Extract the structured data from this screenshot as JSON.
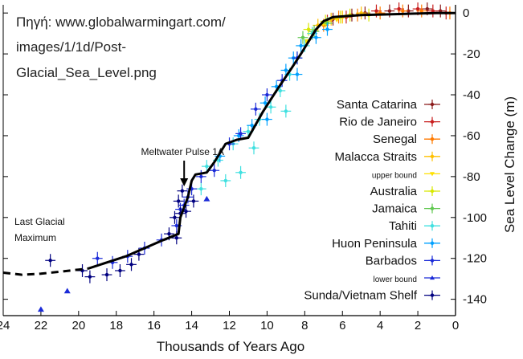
{
  "source_caption": [
    "Πηγή: www.globalwarmingart.com/",
    "images/1/1d/Post-",
    "Glacial_Sea_Level.png"
  ],
  "chart_data": {
    "type": "scatter",
    "xlabel": "Thousands of Years Ago",
    "ylabel": "Sea Level Change (m)",
    "xlim": [
      24,
      0
    ],
    "ylim": [
      -148,
      4
    ],
    "x_ticks": [
      24,
      22,
      20,
      18,
      16,
      14,
      12,
      10,
      8,
      6,
      4,
      2,
      0
    ],
    "y_ticks": [
      0,
      -20,
      -40,
      -60,
      -80,
      -100,
      -120,
      -140
    ],
    "grid": false,
    "legend_position": "right",
    "annotations": [
      {
        "text": "Meltwater Pulse 1A",
        "x": 14.4,
        "y": -72
      },
      {
        "text": "Last Glacial",
        "x": 23.5,
        "y": -101
      },
      {
        "text": "Maximum",
        "x": 23.5,
        "y": -108
      }
    ],
    "series": [
      {
        "name": "Santa Catarina",
        "color": "#8b1a1a",
        "marker": "plus",
        "points": [
          [
            6.5,
            -3
          ],
          [
            5.5,
            -1
          ],
          [
            4.8,
            0
          ],
          [
            3.5,
            1
          ],
          [
            2.5,
            1
          ],
          [
            1.5,
            2
          ],
          [
            0.8,
            1
          ]
        ]
      },
      {
        "name": "Rio de Janeiro",
        "color": "#c81e1e",
        "marker": "plus",
        "points": [
          [
            6.8,
            -4
          ],
          [
            5.8,
            -2
          ],
          [
            4.2,
            1
          ],
          [
            3.0,
            2
          ],
          [
            2.0,
            2
          ],
          [
            1.2,
            1
          ],
          [
            0.5,
            0
          ]
        ]
      },
      {
        "name": "Senegal",
        "color": "#ff7a00",
        "marker": "plus",
        "points": [
          [
            7.0,
            -6
          ],
          [
            6.2,
            -2
          ],
          [
            5.2,
            -1
          ],
          [
            4.0,
            0
          ],
          [
            2.8,
            1
          ],
          [
            1.8,
            1
          ],
          [
            0.3,
            0
          ]
        ]
      },
      {
        "name": "Malacca Straits",
        "color": "#ffc000",
        "marker": "plus",
        "points": [
          [
            7.6,
            -10
          ],
          [
            7.3,
            -6
          ],
          [
            6.6,
            -3
          ],
          [
            6.0,
            -2
          ],
          [
            5.0,
            0
          ]
        ]
      },
      {
        "name": "upper bound",
        "color": "#ffe000",
        "marker": "down",
        "points": [
          [
            7.9,
            -14
          ],
          [
            7.0,
            -5
          ],
          [
            6.3,
            -3
          ]
        ]
      },
      {
        "name": "Australia",
        "color": "#d8e800",
        "marker": "plus",
        "points": [
          [
            7.8,
            -8
          ],
          [
            6.9,
            -4
          ],
          [
            6.1,
            -2
          ],
          [
            5.6,
            -1
          ],
          [
            4.6,
            -1
          ]
        ]
      },
      {
        "name": "Jamaica",
        "color": "#60c850",
        "marker": "plus",
        "points": [
          [
            8.1,
            -12
          ],
          [
            7.5,
            -9
          ],
          [
            6.8,
            -5
          ]
        ]
      },
      {
        "name": "Tahiti",
        "color": "#40e0e0",
        "marker": "plus",
        "points": [
          [
            13.2,
            -75
          ],
          [
            12.6,
            -72
          ],
          [
            11.8,
            -64
          ],
          [
            11.0,
            -58
          ],
          [
            10.4,
            -52
          ],
          [
            9.8,
            -46
          ],
          [
            9.3,
            -38
          ],
          [
            8.8,
            -30
          ],
          [
            8.4,
            -22
          ],
          [
            8.0,
            -16
          ],
          [
            7.6,
            -10
          ],
          [
            12.2,
            -82
          ],
          [
            10.7,
            -66
          ],
          [
            9.0,
            -48
          ],
          [
            13.5,
            -86
          ],
          [
            11.4,
            -78
          ]
        ]
      },
      {
        "name": "Huon Peninsula",
        "color": "#00a0ff",
        "marker": "plus",
        "points": [
          [
            11.5,
            -60
          ],
          [
            10.8,
            -55
          ],
          [
            10.1,
            -44
          ],
          [
            9.5,
            -36
          ],
          [
            9.0,
            -28
          ],
          [
            8.6,
            -22
          ],
          [
            8.2,
            -16
          ],
          [
            7.4,
            -12
          ],
          [
            6.8,
            -8
          ],
          [
            12.5,
            -70
          ],
          [
            10.0,
            -52
          ],
          [
            8.4,
            -30
          ]
        ]
      },
      {
        "name": "Barbados",
        "color": "#1a2ad8",
        "marker": "plus",
        "points": [
          [
            19.0,
            -120
          ],
          [
            18.2,
            -122
          ],
          [
            17.4,
            -119
          ],
          [
            16.5,
            -115
          ],
          [
            15.6,
            -111
          ],
          [
            14.8,
            -104
          ],
          [
            14.6,
            -96
          ],
          [
            14.4,
            -94
          ],
          [
            14.2,
            -90
          ],
          [
            14.0,
            -86
          ],
          [
            13.5,
            -80
          ],
          [
            12.8,
            -77
          ],
          [
            12.0,
            -64
          ],
          [
            11.4,
            -59
          ],
          [
            10.6,
            -47
          ],
          [
            10.0,
            -40
          ],
          [
            9.2,
            -33
          ],
          [
            8.4,
            -22
          ]
        ]
      },
      {
        "name": "lower bound",
        "color": "#1a2ad8",
        "marker": "up",
        "points": [
          [
            22.0,
            -145
          ],
          [
            20.6,
            -136
          ],
          [
            13.2,
            -91
          ]
        ]
      },
      {
        "name": "Sunda/Vietnam Shelf",
        "color": "#000080",
        "marker": "plus",
        "points": [
          [
            21.5,
            -121
          ],
          [
            19.8,
            -126
          ],
          [
            19.4,
            -129
          ],
          [
            18.5,
            -128
          ],
          [
            17.8,
            -126
          ],
          [
            17.2,
            -123
          ],
          [
            16.8,
            -118
          ],
          [
            15.2,
            -108
          ],
          [
            14.9,
            -100
          ],
          [
            14.7,
            -92
          ],
          [
            14.6,
            -98
          ],
          [
            14.3,
            -97
          ],
          [
            14.5,
            -87
          ],
          [
            13.9,
            -92
          ],
          [
            14.8,
            -110
          ]
        ]
      }
    ],
    "trend_line": {
      "color": "#000000",
      "points": [
        [
          19.5,
          -125
        ],
        [
          18.5,
          -122
        ],
        [
          17.5,
          -119
        ],
        [
          16.5,
          -115
        ],
        [
          15.5,
          -111
        ],
        [
          14.7,
          -108
        ],
        [
          14.6,
          -100
        ],
        [
          14.4,
          -95
        ],
        [
          14.2,
          -90
        ],
        [
          14.0,
          -82
        ],
        [
          13.8,
          -79
        ],
        [
          13.2,
          -78
        ],
        [
          12.8,
          -73
        ],
        [
          12.2,
          -64
        ],
        [
          11.6,
          -62
        ],
        [
          11.0,
          -61
        ],
        [
          10.2,
          -48
        ],
        [
          9.5,
          -38
        ],
        [
          8.7,
          -27
        ],
        [
          8.2,
          -20
        ],
        [
          7.8,
          -14
        ],
        [
          7.4,
          -8
        ],
        [
          7.0,
          -4
        ],
        [
          6.5,
          -2
        ],
        [
          5.0,
          -1
        ],
        [
          3.0,
          -0.5
        ],
        [
          1.0,
          0
        ],
        [
          0.0,
          0
        ]
      ]
    },
    "trend_dashed": {
      "color": "#000000",
      "points": [
        [
          24,
          -127
        ],
        [
          23,
          -128
        ],
        [
          22,
          -127.5
        ],
        [
          21,
          -126.5
        ],
        [
          20,
          -125.5
        ],
        [
          19.5,
          -125
        ]
      ]
    }
  }
}
